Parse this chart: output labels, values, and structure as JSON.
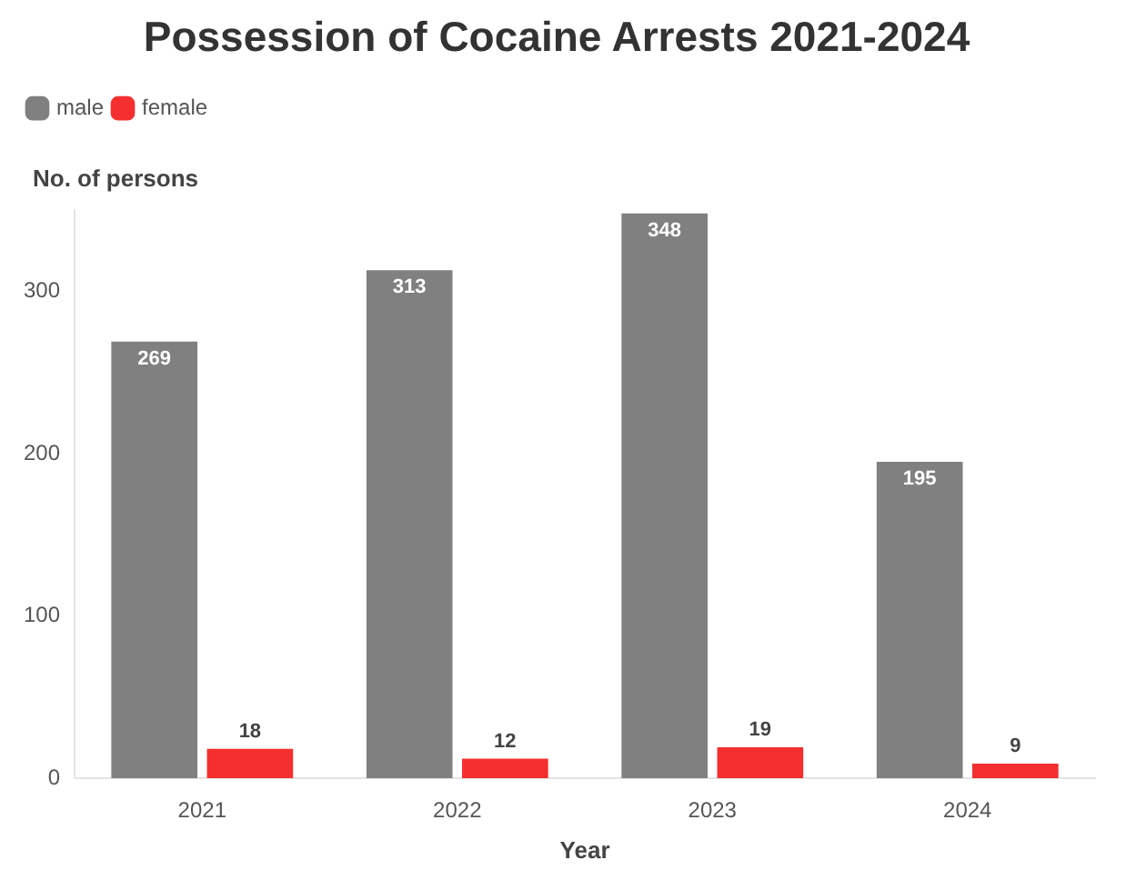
{
  "chart_data": {
    "type": "bar",
    "title": "Possession of Cocaine Arrests 2021-2024",
    "xlabel": "Year",
    "ylabel": "No. of persons",
    "categories": [
      "2021",
      "2022",
      "2023",
      "2024"
    ],
    "series": [
      {
        "name": "male",
        "color": "#808080",
        "values": [
          269,
          313,
          348,
          195
        ]
      },
      {
        "name": "female",
        "color": "#f52f2f",
        "values": [
          18,
          12,
          19,
          9
        ]
      }
    ],
    "ylim": [
      0,
      350
    ],
    "yticks": [
      0,
      100,
      200,
      300
    ],
    "grid": false,
    "legend": "top left",
    "data_labels": true
  }
}
